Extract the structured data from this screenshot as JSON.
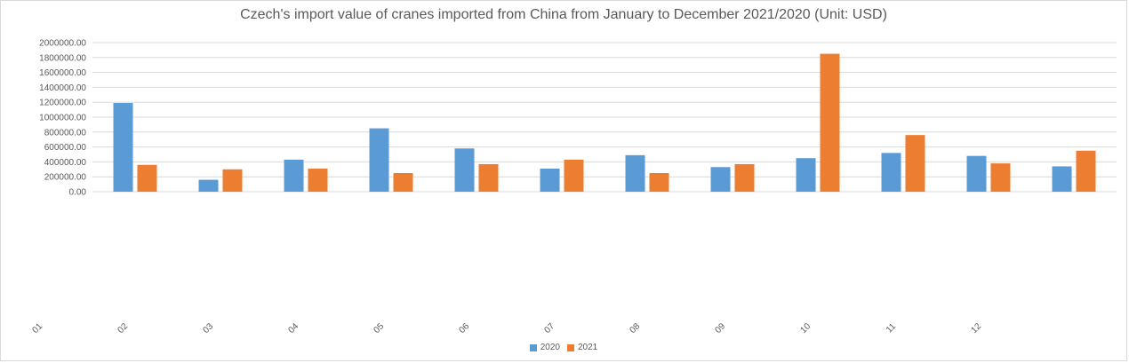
{
  "chart_data": {
    "type": "bar",
    "title": "Czech's import value of cranes imported from China from January to December 2021/2020 (Unit: USD)",
    "categories": [
      "01",
      "02",
      "03",
      "04",
      "05",
      "06",
      "07",
      "08",
      "09",
      "10",
      "11",
      "12"
    ],
    "y_tick_labels": [
      "0.00",
      "200000.00",
      "400000.00",
      "600000.00",
      "800000.00",
      "1000000.00",
      "1200000.00",
      "1400000.00",
      "1600000.00",
      "1800000.00",
      "2000000.00"
    ],
    "ylim": [
      0,
      2000000
    ],
    "grid": true,
    "legend_position": "bottom",
    "series": [
      {
        "name": "2020",
        "color": "#5b9bd5",
        "values": [
          1190000,
          160000,
          430000,
          850000,
          580000,
          310000,
          490000,
          330000,
          450000,
          520000,
          480000,
          340000
        ]
      },
      {
        "name": "2021",
        "color": "#ed7d31",
        "values": [
          360000,
          300000,
          310000,
          250000,
          370000,
          430000,
          250000,
          370000,
          1850000,
          760000,
          380000,
          550000
        ]
      }
    ]
  }
}
